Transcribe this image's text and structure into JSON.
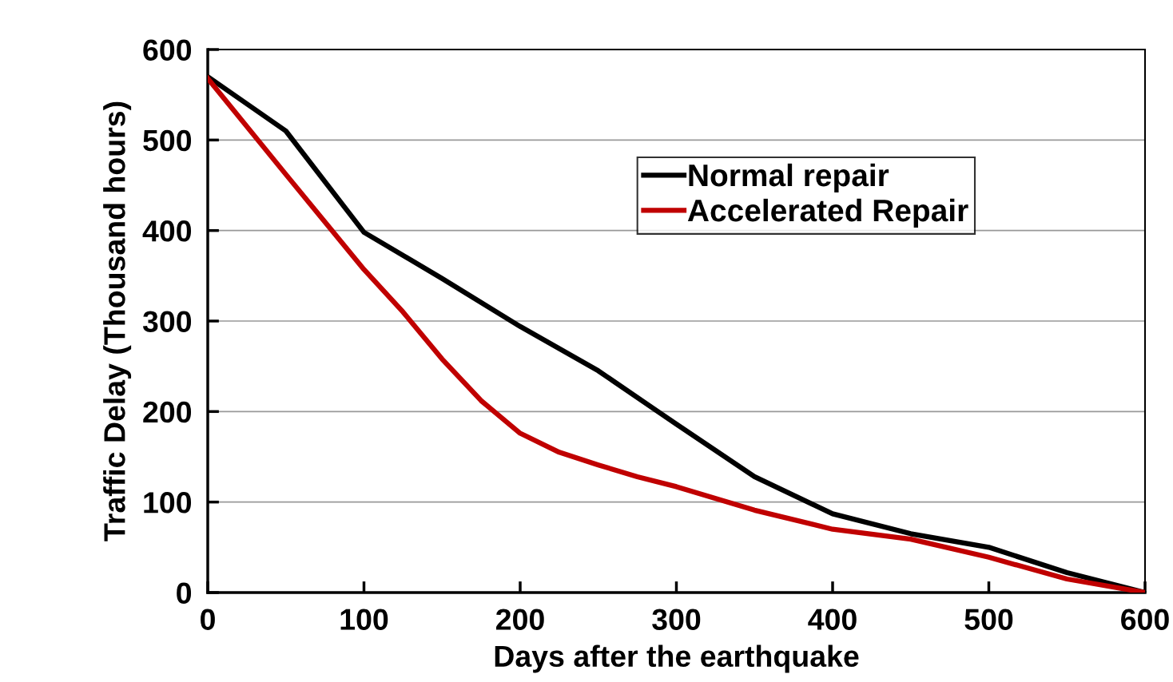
{
  "chart_data": {
    "type": "line",
    "xlabel": "Days after the earthquake",
    "ylabel": "Traffic Delay (Thousand hours)",
    "xlim": [
      0,
      600
    ],
    "xticks": [
      0,
      100,
      200,
      300,
      400,
      500,
      600
    ],
    "ylim": [
      0,
      600
    ],
    "yticks": [
      0,
      100,
      200,
      300,
      400,
      500,
      600
    ],
    "grid": "y",
    "legend": "top right",
    "marker": "none",
    "line_style": "solid",
    "series": [
      {
        "name": "Normal repair",
        "color": "#000000",
        "x": [
          0,
          50,
          100,
          150,
          200,
          250,
          300,
          350,
          400,
          450,
          500,
          550,
          600
        ],
        "values": [
          570,
          510,
          398,
          347,
          294,
          245,
          186,
          128,
          87,
          65,
          50,
          22,
          0
        ]
      },
      {
        "name": "Accelerated Repair",
        "color": "#c00000",
        "x": [
          0,
          50,
          100,
          125,
          150,
          175,
          200,
          225,
          250,
          275,
          300,
          350,
          400,
          450,
          500,
          550,
          600
        ],
        "values": [
          568,
          462,
          357,
          310,
          258,
          212,
          176,
          155,
          141,
          128,
          117,
          91,
          70,
          59,
          39,
          15,
          0
        ]
      }
    ]
  }
}
